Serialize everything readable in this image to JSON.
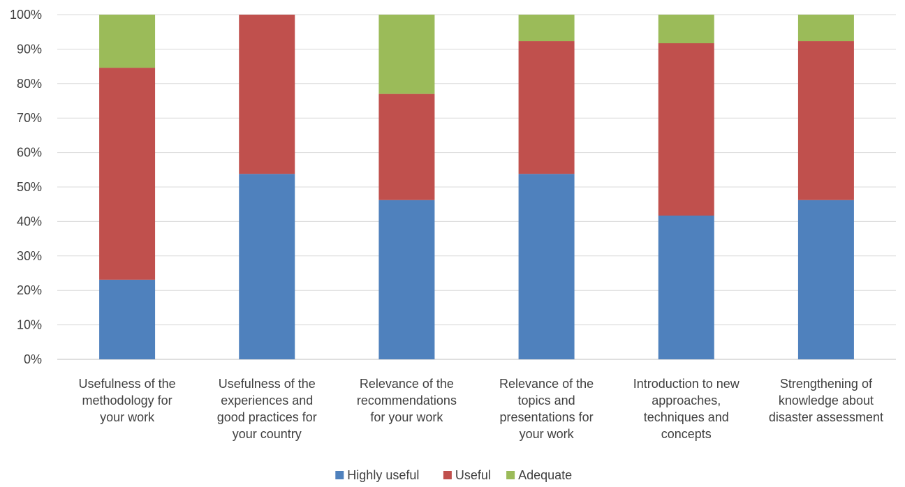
{
  "chart_data": {
    "type": "bar",
    "stacked": true,
    "percent_stacked": true,
    "categories": [
      [
        "Usefulness of the",
        "methodology for",
        "your work"
      ],
      [
        "Usefulness of the",
        "experiences and",
        "good practices for",
        "your country"
      ],
      [
        "Relevance of the",
        "recommendations",
        "for your work"
      ],
      [
        "Relevance of the",
        "topics and",
        "presentations for",
        "your work"
      ],
      [
        "Introduction to new",
        "approaches,",
        "techniques and",
        "concepts"
      ],
      [
        "Strengthening of",
        "knowledge about",
        "disaster assessment"
      ]
    ],
    "series": [
      {
        "name": "Highly useful",
        "color": "#4F81BD",
        "values": [
          23.1,
          53.8,
          46.2,
          53.8,
          41.7,
          46.2
        ]
      },
      {
        "name": "Useful",
        "color": "#C0504D",
        "values": [
          61.5,
          46.2,
          30.8,
          38.5,
          50.0,
          46.1
        ]
      },
      {
        "name": "Adequate",
        "color": "#9BBB59",
        "values": [
          15.4,
          0.0,
          23.0,
          7.7,
          8.3,
          7.7
        ]
      }
    ],
    "y_ticks": [
      "0%",
      "10%",
      "20%",
      "30%",
      "40%",
      "50%",
      "60%",
      "70%",
      "80%",
      "90%",
      "100%"
    ],
    "ylim": [
      0,
      100
    ],
    "grid": true,
    "legend_position": "bottom"
  }
}
